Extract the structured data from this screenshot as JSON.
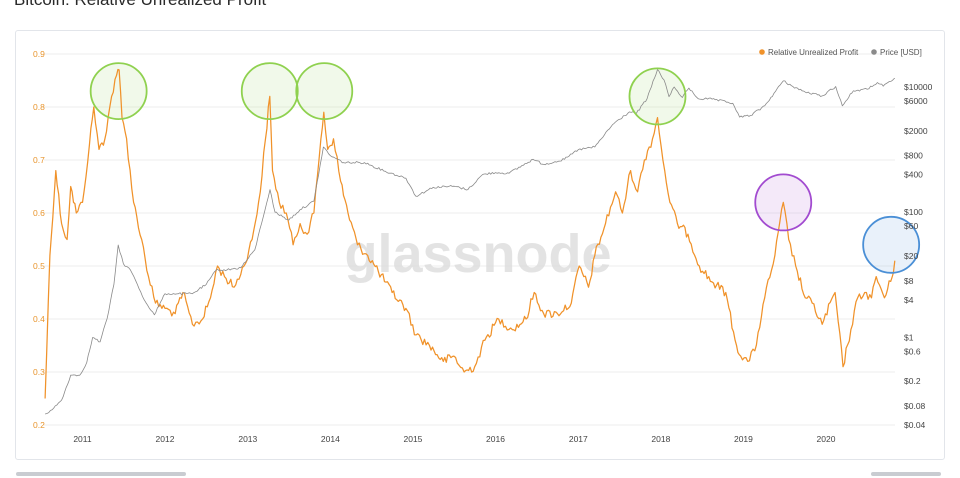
{
  "page": {
    "title": "Bitcoin: Relative Unrealized Profit"
  },
  "watermark": "glassnode",
  "colors": {
    "rup": "#f0922a",
    "price": "#8a8a8a",
    "left_axis": "#e8952e",
    "grid": "#eeeeee"
  },
  "chart_data": {
    "type": "line",
    "x_range": [
      "2010-07-15",
      "2020-11-01"
    ],
    "x_ticks": [
      "2011",
      "2012",
      "2013",
      "2014",
      "2015",
      "2016",
      "2017",
      "2018",
      "2019",
      "2020"
    ],
    "left_axis": {
      "ylim": [
        0.2,
        0.9
      ],
      "ticks": [
        "0.2",
        "0.3",
        "0.4",
        "0.5",
        "0.6",
        "0.7",
        "0.8",
        "0.9"
      ]
    },
    "right_axis": {
      "scale": "log",
      "ticks": [
        "$0.04",
        "$0.08",
        "$0.2",
        "$0.6",
        "$1",
        "$4",
        "$8",
        "$20",
        "$60",
        "$100",
        "$400",
        "$800",
        "$2000",
        "$6000",
        "$10000"
      ]
    },
    "legend": {
      "position": "top-right",
      "items": [
        {
          "name": "Relative Unrealized Profit",
          "color": "#f0922a"
        },
        {
          "name": "Price [USD]",
          "color": "#8a8a8a"
        }
      ]
    },
    "series": [
      {
        "name": "Relative Unrealized Profit",
        "axis": "left",
        "points": [
          [
            "2010-07-20",
            0.25
          ],
          [
            "2010-08-10",
            0.52
          ],
          [
            "2010-09-05",
            0.68
          ],
          [
            "2010-10-01",
            0.58
          ],
          [
            "2010-10-25",
            0.55
          ],
          [
            "2010-11-10",
            0.65
          ],
          [
            "2010-12-05",
            0.6
          ],
          [
            "2011-01-01",
            0.62
          ],
          [
            "2011-02-01",
            0.73
          ],
          [
            "2011-02-20",
            0.8
          ],
          [
            "2011-03-15",
            0.72
          ],
          [
            "2011-04-10",
            0.74
          ],
          [
            "2011-05-10",
            0.82
          ],
          [
            "2011-06-01",
            0.86
          ],
          [
            "2011-06-12",
            0.87
          ],
          [
            "2011-06-25",
            0.78
          ],
          [
            "2011-07-15",
            0.74
          ],
          [
            "2011-08-15",
            0.62
          ],
          [
            "2011-09-20",
            0.55
          ],
          [
            "2011-10-20",
            0.48
          ],
          [
            "2011-11-20",
            0.43
          ],
          [
            "2012-01-01",
            0.42
          ],
          [
            "2012-02-15",
            0.41
          ],
          [
            "2012-03-20",
            0.45
          ],
          [
            "2012-05-01",
            0.39
          ],
          [
            "2012-06-15",
            0.4
          ],
          [
            "2012-07-20",
            0.44
          ],
          [
            "2012-08-20",
            0.5
          ],
          [
            "2012-09-20",
            0.48
          ],
          [
            "2012-11-01",
            0.46
          ],
          [
            "2012-12-15",
            0.5
          ],
          [
            "2013-01-20",
            0.55
          ],
          [
            "2013-02-25",
            0.64
          ],
          [
            "2013-03-20",
            0.74
          ],
          [
            "2013-04-08",
            0.82
          ],
          [
            "2013-04-20",
            0.68
          ],
          [
            "2013-05-20",
            0.62
          ],
          [
            "2013-06-20",
            0.6
          ],
          [
            "2013-07-20",
            0.54
          ],
          [
            "2013-08-20",
            0.58
          ],
          [
            "2013-09-20",
            0.56
          ],
          [
            "2013-10-20",
            0.6
          ],
          [
            "2013-11-20",
            0.74
          ],
          [
            "2013-12-03",
            0.79
          ],
          [
            "2013-12-20",
            0.72
          ],
          [
            "2014-01-15",
            0.74
          ],
          [
            "2014-02-15",
            0.66
          ],
          [
            "2014-03-20",
            0.6
          ],
          [
            "2014-05-01",
            0.54
          ],
          [
            "2014-06-15",
            0.52
          ],
          [
            "2014-08-01",
            0.49
          ],
          [
            "2014-10-01",
            0.45
          ],
          [
            "2014-12-01",
            0.42
          ],
          [
            "2015-01-15",
            0.37
          ],
          [
            "2015-03-15",
            0.35
          ],
          [
            "2015-05-15",
            0.32
          ],
          [
            "2015-07-01",
            0.33
          ],
          [
            "2015-08-15",
            0.3
          ],
          [
            "2015-10-01",
            0.31
          ],
          [
            "2015-11-15",
            0.36
          ],
          [
            "2016-01-15",
            0.4
          ],
          [
            "2016-03-15",
            0.38
          ],
          [
            "2016-05-15",
            0.4
          ],
          [
            "2016-06-20",
            0.45
          ],
          [
            "2016-08-01",
            0.41
          ],
          [
            "2016-10-01",
            0.41
          ],
          [
            "2016-12-01",
            0.43
          ],
          [
            "2017-01-05",
            0.5
          ],
          [
            "2017-02-15",
            0.46
          ],
          [
            "2017-03-15",
            0.52
          ],
          [
            "2017-05-01",
            0.58
          ],
          [
            "2017-06-15",
            0.64
          ],
          [
            "2017-07-15",
            0.6
          ],
          [
            "2017-08-20",
            0.68
          ],
          [
            "2017-09-20",
            0.64
          ],
          [
            "2017-10-20",
            0.7
          ],
          [
            "2017-11-25",
            0.74
          ],
          [
            "2017-12-17",
            0.78
          ],
          [
            "2018-01-10",
            0.7
          ],
          [
            "2018-02-10",
            0.62
          ],
          [
            "2018-03-15",
            0.58
          ],
          [
            "2018-05-01",
            0.56
          ],
          [
            "2018-06-20",
            0.5
          ],
          [
            "2018-08-15",
            0.47
          ],
          [
            "2018-10-15",
            0.45
          ],
          [
            "2018-11-25",
            0.36
          ],
          [
            "2018-12-20",
            0.33
          ],
          [
            "2019-01-20",
            0.32
          ],
          [
            "2019-02-20",
            0.34
          ],
          [
            "2019-04-05",
            0.44
          ],
          [
            "2019-05-20",
            0.52
          ],
          [
            "2019-06-26",
            0.62
          ],
          [
            "2019-07-20",
            0.55
          ],
          [
            "2019-08-20",
            0.5
          ],
          [
            "2019-10-01",
            0.44
          ],
          [
            "2019-11-01",
            0.43
          ],
          [
            "2019-12-15",
            0.39
          ],
          [
            "2020-02-10",
            0.45
          ],
          [
            "2020-03-16",
            0.31
          ],
          [
            "2020-04-20",
            0.38
          ],
          [
            "2020-05-20",
            0.44
          ],
          [
            "2020-06-20",
            0.45
          ],
          [
            "2020-07-20",
            0.44
          ],
          [
            "2020-08-10",
            0.48
          ],
          [
            "2020-09-15",
            0.44
          ],
          [
            "2020-10-20",
            0.48
          ],
          [
            "2020-10-31",
            0.51
          ]
        ]
      },
      {
        "name": "Price [USD]",
        "axis": "right",
        "points": [
          [
            "2010-07-20",
            0.06
          ],
          [
            "2010-08-20",
            0.07
          ],
          [
            "2010-10-01",
            0.1
          ],
          [
            "2010-11-10",
            0.25
          ],
          [
            "2010-12-20",
            0.25
          ],
          [
            "2011-01-20",
            0.4
          ],
          [
            "2011-02-15",
            1
          ],
          [
            "2011-03-20",
            0.85
          ],
          [
            "2011-04-20",
            2
          ],
          [
            "2011-05-20",
            7
          ],
          [
            "2011-06-08",
            30
          ],
          [
            "2011-07-01",
            15
          ],
          [
            "2011-08-01",
            12
          ],
          [
            "2011-09-01",
            7
          ],
          [
            "2011-10-01",
            4
          ],
          [
            "2011-11-15",
            2.3
          ],
          [
            "2012-01-01",
            5
          ],
          [
            "2012-03-01",
            5
          ],
          [
            "2012-05-01",
            5
          ],
          [
            "2012-07-01",
            7
          ],
          [
            "2012-08-15",
            12
          ],
          [
            "2012-10-01",
            12
          ],
          [
            "2012-12-01",
            13
          ],
          [
            "2013-02-01",
            25
          ],
          [
            "2013-04-09",
            230
          ],
          [
            "2013-05-01",
            100
          ],
          [
            "2013-07-01",
            75
          ],
          [
            "2013-08-20",
            110
          ],
          [
            "2013-10-20",
            150
          ],
          [
            "2013-12-01",
            1100
          ],
          [
            "2014-01-01",
            800
          ],
          [
            "2014-03-01",
            620
          ],
          [
            "2014-06-01",
            620
          ],
          [
            "2014-09-01",
            450
          ],
          [
            "2014-12-01",
            350
          ],
          [
            "2015-01-14",
            180
          ],
          [
            "2015-04-01",
            250
          ],
          [
            "2015-07-01",
            260
          ],
          [
            "2015-09-01",
            230
          ],
          [
            "2015-11-05",
            400
          ],
          [
            "2016-01-01",
            430
          ],
          [
            "2016-03-01",
            420
          ],
          [
            "2016-06-15",
            700
          ],
          [
            "2016-08-01",
            580
          ],
          [
            "2016-11-01",
            700
          ],
          [
            "2017-01-01",
            1000
          ],
          [
            "2017-03-15",
            1100
          ],
          [
            "2017-06-01",
            2500
          ],
          [
            "2017-08-15",
            4000
          ],
          [
            "2017-09-15",
            3800
          ],
          [
            "2017-11-01",
            6500
          ],
          [
            "2017-12-17",
            19000
          ],
          [
            "2018-01-15",
            13000
          ],
          [
            "2018-02-06",
            7000
          ],
          [
            "2018-03-01",
            10000
          ],
          [
            "2018-04-06",
            6800
          ],
          [
            "2018-05-05",
            9600
          ],
          [
            "2018-06-15",
            6500
          ],
          [
            "2018-08-15",
            6400
          ],
          [
            "2018-11-15",
            5500
          ],
          [
            "2018-12-15",
            3300
          ],
          [
            "2019-02-01",
            3500
          ],
          [
            "2019-04-05",
            5000
          ],
          [
            "2019-06-26",
            12500
          ],
          [
            "2019-08-01",
            10500
          ],
          [
            "2019-10-01",
            8300
          ],
          [
            "2019-12-15",
            7200
          ],
          [
            "2020-02-13",
            10200
          ],
          [
            "2020-03-13",
            5000
          ],
          [
            "2020-05-01",
            8700
          ],
          [
            "2020-07-01",
            9200
          ],
          [
            "2020-08-15",
            11800
          ],
          [
            "2020-09-10",
            10300
          ],
          [
            "2020-10-21",
            12800
          ],
          [
            "2020-10-31",
            13800
          ]
        ]
      }
    ],
    "highlight_circles": [
      {
        "date": "2011-06-10",
        "value": 0.83,
        "color": "#8fd14f"
      },
      {
        "date": "2013-04-08",
        "value": 0.83,
        "color": "#8fd14f"
      },
      {
        "date": "2013-12-05",
        "value": 0.83,
        "color": "#8fd14f"
      },
      {
        "date": "2017-12-17",
        "value": 0.82,
        "color": "#8fd14f"
      },
      {
        "date": "2019-06-26",
        "value": 0.62,
        "color": "#a24bd0"
      },
      {
        "date": "2020-10-15",
        "value": 0.54,
        "color": "#4a8fd6"
      }
    ]
  }
}
